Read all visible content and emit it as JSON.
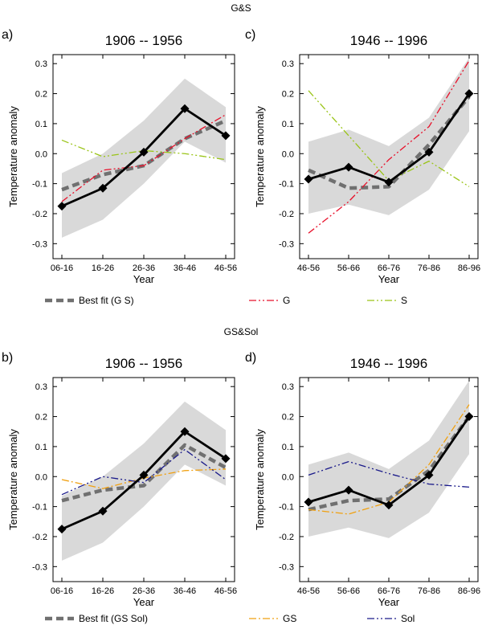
{
  "sections": [
    {
      "title": "G&S"
    },
    {
      "title": "GS&Sol"
    }
  ],
  "legends": [
    {
      "items": [
        {
          "label": "Best fit (G S)",
          "color": "#707070",
          "style": "dashed-thick"
        },
        {
          "label": "G",
          "color": "#e8102a",
          "style": "dash-dot-dot"
        },
        {
          "label": "S",
          "color": "#9ac418",
          "style": "dash-dot-dot"
        }
      ]
    },
    {
      "items": [
        {
          "label": "Best fit (GS Sol)",
          "color": "#707070",
          "style": "dashed-thick"
        },
        {
          "label": "GS",
          "color": "#f0a010",
          "style": "dash-dot"
        },
        {
          "label": "Sol",
          "color": "#1a1a8a",
          "style": "dash-dot-dot"
        }
      ]
    }
  ],
  "chart_data": [
    {
      "type": "line",
      "panel_label": "a)",
      "title": "1906 -- 1956",
      "xlabel": "Year",
      "ylabel": "Temperature anomaly",
      "categories": [
        "06-16",
        "16-26",
        "26-36",
        "36-46",
        "46-56"
      ],
      "ylim": [
        -0.35,
        0.33
      ],
      "yticks": [
        "-0.3",
        "-0.2",
        "-0.1",
        "0.0",
        "0.1",
        "0.2",
        "0.3"
      ],
      "band": {
        "upper": [
          -0.065,
          0.0,
          0.11,
          0.25,
          0.155
        ],
        "lower": [
          -0.28,
          -0.22,
          -0.1,
          0.04,
          -0.03
        ],
        "color": "#d9d9d9"
      },
      "series": [
        {
          "name": "Best fit (G S)",
          "values": [
            -0.12,
            -0.07,
            -0.04,
            0.05,
            0.11
          ],
          "color": "#707070",
          "style": "dashed-thick"
        },
        {
          "name": "G",
          "values": [
            -0.16,
            -0.055,
            -0.04,
            0.05,
            0.13
          ],
          "color": "#e8102a",
          "style": "dash-dot-dot"
        },
        {
          "name": "S",
          "values": [
            0.045,
            -0.01,
            0.01,
            0.0,
            -0.02
          ],
          "color": "#9ac418",
          "style": "dash-dot-dot"
        },
        {
          "values": [
            -0.175,
            -0.115,
            0.005,
            0.15,
            0.06
          ],
          "color": "#000000",
          "style": "observed"
        }
      ]
    },
    {
      "type": "line",
      "panel_label": "c)",
      "title": "1946 -- 1996",
      "xlabel": "Year",
      "ylabel": "Temperature anomaly",
      "categories": [
        "46-56",
        "56-66",
        "66-76",
        "76-86",
        "86-96"
      ],
      "ylim": [
        -0.35,
        0.33
      ],
      "yticks": [
        "-0.3",
        "-0.2",
        "-0.1",
        "0.0",
        "0.1",
        "0.2",
        "0.3"
      ],
      "band": {
        "upper": [
          0.04,
          0.08,
          0.025,
          0.12,
          0.32
        ],
        "lower": [
          -0.2,
          -0.17,
          -0.205,
          -0.12,
          0.075
        ],
        "color": "#d9d9d9"
      },
      "series": [
        {
          "name": "Best fit (G S)",
          "values": [
            -0.055,
            -0.115,
            -0.11,
            0.03,
            0.19
          ],
          "color": "#707070",
          "style": "dashed-thick"
        },
        {
          "name": "G",
          "values": [
            -0.265,
            -0.16,
            -0.02,
            0.09,
            0.31
          ],
          "color": "#e8102a",
          "style": "dash-dot-dot"
        },
        {
          "name": "S",
          "values": [
            0.21,
            0.06,
            -0.09,
            -0.025,
            -0.11
          ],
          "color": "#9ac418",
          "style": "dash-dot-dot"
        },
        {
          "values": [
            -0.085,
            -0.045,
            -0.095,
            0.005,
            0.2
          ],
          "color": "#000000",
          "style": "observed"
        }
      ]
    },
    {
      "type": "line",
      "panel_label": "b)",
      "title": "1906 -- 1956",
      "xlabel": "Year",
      "ylabel": "Temperature anomaly",
      "categories": [
        "06-16",
        "16-26",
        "26-36",
        "36-46",
        "46-56"
      ],
      "ylim": [
        -0.35,
        0.33
      ],
      "yticks": [
        "-0.3",
        "-0.2",
        "-0.1",
        "0.0",
        "0.1",
        "0.2",
        "0.3"
      ],
      "band": {
        "upper": [
          -0.065,
          0.0,
          0.11,
          0.25,
          0.155
        ],
        "lower": [
          -0.28,
          -0.22,
          -0.1,
          0.04,
          -0.03
        ],
        "color": "#d9d9d9"
      },
      "series": [
        {
          "name": "Best fit (GS Sol)",
          "values": [
            -0.08,
            -0.045,
            -0.03,
            0.105,
            0.03
          ],
          "color": "#707070",
          "style": "dashed-thick"
        },
        {
          "name": "GS",
          "values": [
            -0.01,
            -0.04,
            -0.005,
            0.02,
            0.025
          ],
          "color": "#f0a010",
          "style": "dash-dot"
        },
        {
          "name": "Sol",
          "values": [
            -0.06,
            0.0,
            -0.02,
            0.09,
            -0.01
          ],
          "color": "#1a1a8a",
          "style": "dash-dot-dot"
        },
        {
          "values": [
            -0.175,
            -0.115,
            0.005,
            0.15,
            0.06
          ],
          "color": "#000000",
          "style": "observed"
        }
      ]
    },
    {
      "type": "line",
      "panel_label": "d)",
      "title": "1946 -- 1996",
      "xlabel": "Year",
      "ylabel": "Temperature anomaly",
      "categories": [
        "46-56",
        "56-66",
        "66-76",
        "76-86",
        "86-96"
      ],
      "ylim": [
        -0.35,
        0.33
      ],
      "yticks": [
        "-0.3",
        "-0.2",
        "-0.1",
        "0.0",
        "0.1",
        "0.2",
        "0.3"
      ],
      "band": {
        "upper": [
          0.04,
          0.08,
          0.025,
          0.12,
          0.32
        ],
        "lower": [
          -0.2,
          -0.17,
          -0.205,
          -0.12,
          0.075
        ],
        "color": "#d9d9d9"
      },
      "series": [
        {
          "name": "Best fit (GS Sol)",
          "values": [
            -0.11,
            -0.08,
            -0.075,
            0.02,
            0.2
          ],
          "color": "#707070",
          "style": "dashed-thick"
        },
        {
          "name": "GS",
          "values": [
            -0.11,
            -0.125,
            -0.085,
            0.04,
            0.24
          ],
          "color": "#f0a010",
          "style": "dash-dot"
        },
        {
          "name": "Sol",
          "values": [
            0.005,
            0.05,
            0.01,
            -0.025,
            -0.035
          ],
          "color": "#1a1a8a",
          "style": "dash-dot-dot"
        },
        {
          "values": [
            -0.085,
            -0.045,
            -0.095,
            0.005,
            0.2
          ],
          "color": "#000000",
          "style": "observed"
        }
      ]
    }
  ]
}
